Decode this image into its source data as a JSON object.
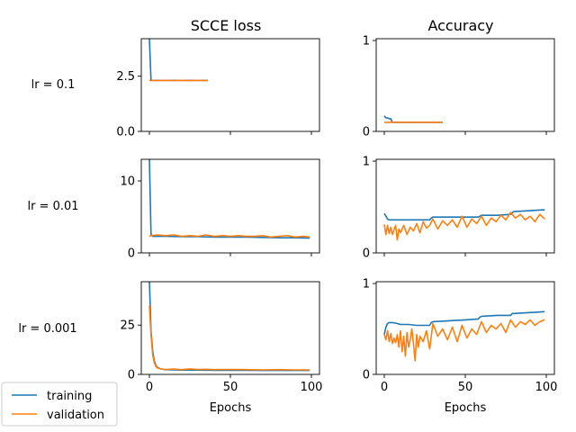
{
  "figure": {
    "col_titles": [
      "SCCE loss",
      "Accuracy"
    ],
    "row_labels": [
      "lr = 0.1",
      "lr = 0.01",
      "lr = 0.001"
    ],
    "xlabel": "Epochs",
    "legend": {
      "entries": [
        "training",
        "validation"
      ],
      "placement": "bottom-left"
    },
    "colors": {
      "training": "#1f77b4",
      "validation": "#ff7f0e"
    }
  },
  "chart_data": [
    {
      "type": "line",
      "title": "SCCE loss",
      "row": "lr = 0.1",
      "xlabel": "",
      "xlim": [
        -5,
        105
      ],
      "ylim": [
        0,
        4.2
      ],
      "xticks": [
        0,
        50,
        100
      ],
      "xtick_labels": [],
      "yticks": [
        0.0,
        2.5
      ],
      "ytick_labels": [
        "0.0",
        "2.5"
      ],
      "series": [
        {
          "name": "training",
          "x": [
            0,
            1,
            2,
            5,
            10,
            15,
            20,
            25,
            30,
            36
          ],
          "y": [
            4.2,
            2.33,
            2.31,
            2.31,
            2.31,
            2.31,
            2.31,
            2.31,
            2.31,
            2.31
          ]
        },
        {
          "name": "validation",
          "x": [
            0,
            1,
            2,
            5,
            10,
            15,
            20,
            25,
            30,
            36
          ],
          "y": [
            2.31,
            2.3,
            2.31,
            2.3,
            2.31,
            2.3,
            2.31,
            2.3,
            2.31,
            2.3
          ]
        }
      ]
    },
    {
      "type": "line",
      "title": "Accuracy",
      "row": "lr = 0.1",
      "xlabel": "",
      "xlim": [
        -5,
        105
      ],
      "ylim": [
        0,
        1.02
      ],
      "xticks": [
        0,
        50,
        100
      ],
      "xtick_labels": [],
      "yticks": [
        0,
        1
      ],
      "ytick_labels": [
        "0",
        "1"
      ],
      "series": [
        {
          "name": "training",
          "x": [
            0,
            1,
            2,
            3,
            4,
            5,
            10,
            15,
            20,
            25,
            30,
            36
          ],
          "y": [
            0.17,
            0.15,
            0.15,
            0.14,
            0.14,
            0.1,
            0.1,
            0.1,
            0.1,
            0.1,
            0.1,
            0.1
          ]
        },
        {
          "name": "validation",
          "x": [
            0,
            1,
            5,
            10,
            15,
            20,
            25,
            30,
            36
          ],
          "y": [
            0.1,
            0.1,
            0.1,
            0.1,
            0.1,
            0.1,
            0.1,
            0.1,
            0.1
          ]
        }
      ]
    },
    {
      "type": "line",
      "title": "",
      "row": "lr = 0.01",
      "xlabel": "",
      "xlim": [
        -5,
        105
      ],
      "ylim": [
        0,
        13
      ],
      "xticks": [
        0,
        50,
        100
      ],
      "xtick_labels": [],
      "yticks": [
        0,
        10
      ],
      "ytick_labels": [
        "0",
        "10"
      ],
      "series": [
        {
          "name": "training",
          "x": [
            0,
            1,
            2,
            5,
            10,
            20,
            30,
            40,
            50,
            60,
            70,
            80,
            90,
            99
          ],
          "y": [
            13,
            2.6,
            2.3,
            2.3,
            2.3,
            2.25,
            2.25,
            2.2,
            2.2,
            2.2,
            2.15,
            2.1,
            2.1,
            2.05
          ]
        },
        {
          "name": "validation",
          "x": [
            0,
            1,
            5,
            10,
            15,
            20,
            25,
            30,
            35,
            40,
            45,
            50,
            55,
            60,
            65,
            70,
            75,
            80,
            85,
            90,
            95,
            99
          ],
          "y": [
            2.3,
            2.4,
            2.5,
            2.4,
            2.5,
            2.3,
            2.4,
            2.3,
            2.5,
            2.3,
            2.4,
            2.3,
            2.4,
            2.3,
            2.3,
            2.4,
            2.2,
            2.3,
            2.4,
            2.2,
            2.3,
            2.2
          ]
        }
      ]
    },
    {
      "type": "line",
      "title": "",
      "row": "lr = 0.01",
      "xlabel": "",
      "xlim": [
        -5,
        105
      ],
      "ylim": [
        0,
        1.02
      ],
      "xticks": [
        0,
        50,
        100
      ],
      "xtick_labels": [],
      "yticks": [
        0,
        1
      ],
      "ytick_labels": [
        "0",
        "1"
      ],
      "series": [
        {
          "name": "training",
          "x": [
            0,
            1,
            2,
            3,
            5,
            10,
            20,
            28,
            29,
            30,
            40,
            50,
            58,
            59,
            60,
            70,
            78,
            79,
            80,
            90,
            99
          ],
          "y": [
            0.43,
            0.4,
            0.37,
            0.36,
            0.36,
            0.36,
            0.36,
            0.36,
            0.38,
            0.39,
            0.39,
            0.39,
            0.39,
            0.4,
            0.41,
            0.41,
            0.42,
            0.44,
            0.45,
            0.46,
            0.47
          ]
        },
        {
          "name": "validation",
          "x": [
            0,
            1,
            2,
            3,
            4,
            5,
            6,
            7,
            8,
            9,
            10,
            12,
            14,
            16,
            18,
            20,
            22,
            24,
            26,
            28,
            30,
            33,
            36,
            39,
            42,
            45,
            48,
            51,
            54,
            57,
            60,
            63,
            66,
            69,
            72,
            75,
            78,
            81,
            84,
            87,
            90,
            93,
            96,
            99
          ],
          "y": [
            0.31,
            0.2,
            0.3,
            0.21,
            0.28,
            0.2,
            0.25,
            0.3,
            0.14,
            0.26,
            0.22,
            0.3,
            0.2,
            0.28,
            0.24,
            0.32,
            0.22,
            0.34,
            0.27,
            0.3,
            0.37,
            0.26,
            0.35,
            0.3,
            0.36,
            0.28,
            0.4,
            0.28,
            0.37,
            0.32,
            0.4,
            0.3,
            0.38,
            0.34,
            0.41,
            0.36,
            0.44,
            0.38,
            0.42,
            0.36,
            0.4,
            0.34,
            0.42,
            0.37
          ]
        }
      ]
    },
    {
      "type": "line",
      "title": "",
      "row": "lr = 0.001",
      "xlabel": "Epochs",
      "xlim": [
        -5,
        105
      ],
      "ylim": [
        0,
        47
      ],
      "xticks": [
        0,
        50,
        100
      ],
      "xtick_labels": [
        "0",
        "50",
        "100"
      ],
      "yticks": [
        0,
        25
      ],
      "ytick_labels": [
        "0",
        "25"
      ],
      "series": [
        {
          "name": "training",
          "x": [
            0,
            0.5,
            1,
            2,
            3,
            4,
            5,
            7,
            10,
            15,
            20,
            30,
            40,
            50,
            60,
            70,
            80,
            90,
            99
          ],
          "y": [
            47,
            35,
            22,
            12,
            7,
            4.5,
            3.5,
            2.8,
            2.4,
            2.3,
            2.2,
            2.2,
            2.1,
            2.1,
            2.1,
            2.0,
            2.0,
            2.0,
            2.0
          ]
        },
        {
          "name": "validation",
          "x": [
            0,
            1,
            2,
            3,
            4,
            5,
            7,
            10,
            15,
            20,
            25,
            30,
            35,
            40,
            50,
            60,
            70,
            80,
            90,
            99
          ],
          "y": [
            35,
            20,
            10,
            6,
            4,
            3.2,
            2.8,
            2.5,
            2.7,
            2.4,
            2.8,
            2.5,
            2.6,
            2.4,
            2.5,
            2.4,
            2.3,
            2.4,
            2.3,
            2.3
          ]
        }
      ]
    },
    {
      "type": "line",
      "title": "",
      "row": "lr = 0.001",
      "xlabel": "Epochs",
      "xlim": [
        -5,
        105
      ],
      "ylim": [
        0,
        1.02
      ],
      "xticks": [
        0,
        50,
        100
      ],
      "xtick_labels": [
        "0",
        "50",
        "100"
      ],
      "yticks": [
        0,
        1
      ],
      "ytick_labels": [
        "0",
        "1"
      ],
      "series": [
        {
          "name": "training",
          "x": [
            0,
            1,
            2,
            3,
            5,
            8,
            10,
            15,
            20,
            28,
            29,
            30,
            40,
            50,
            58,
            59,
            60,
            70,
            78,
            79,
            80,
            90,
            99
          ],
          "y": [
            0.44,
            0.52,
            0.56,
            0.57,
            0.57,
            0.56,
            0.55,
            0.55,
            0.54,
            0.54,
            0.57,
            0.58,
            0.59,
            0.6,
            0.61,
            0.63,
            0.64,
            0.65,
            0.65,
            0.67,
            0.67,
            0.68,
            0.69
          ]
        },
        {
          "name": "validation",
          "x": [
            0,
            1,
            2,
            3,
            4,
            5,
            6,
            7,
            8,
            9,
            10,
            11,
            12,
            13,
            14,
            15,
            16,
            17,
            18,
            19,
            20,
            21,
            22,
            24,
            26,
            28,
            30,
            33,
            36,
            39,
            42,
            45,
            48,
            51,
            54,
            57,
            60,
            63,
            66,
            69,
            72,
            75,
            78,
            81,
            84,
            87,
            90,
            93,
            96,
            99
          ],
          "y": [
            0.44,
            0.38,
            0.48,
            0.36,
            0.45,
            0.34,
            0.4,
            0.35,
            0.44,
            0.3,
            0.48,
            0.25,
            0.42,
            0.2,
            0.46,
            0.3,
            0.38,
            0.5,
            0.34,
            0.15,
            0.44,
            0.3,
            0.42,
            0.36,
            0.48,
            0.28,
            0.56,
            0.42,
            0.5,
            0.38,
            0.52,
            0.36,
            0.54,
            0.4,
            0.5,
            0.44,
            0.58,
            0.46,
            0.54,
            0.5,
            0.56,
            0.46,
            0.6,
            0.52,
            0.58,
            0.55,
            0.6,
            0.54,
            0.58,
            0.6
          ]
        }
      ]
    }
  ]
}
